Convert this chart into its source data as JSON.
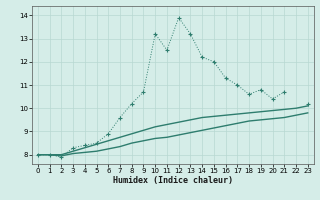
{
  "xlabel": "Humidex (Indice chaleur)",
  "x_values": [
    0,
    1,
    2,
    3,
    4,
    5,
    6,
    7,
    8,
    9,
    10,
    11,
    12,
    13,
    14,
    15,
    16,
    17,
    18,
    19,
    20,
    21,
    22,
    23
  ],
  "line1_y": [
    8.0,
    8.0,
    7.9,
    8.3,
    8.4,
    8.5,
    8.9,
    9.6,
    10.2,
    10.7,
    13.2,
    12.5,
    13.9,
    13.2,
    12.2,
    12.0,
    11.3,
    11.0,
    10.6,
    10.8,
    10.4,
    10.7,
    null,
    10.2
  ],
  "line2_y": [
    8.0,
    8.0,
    8.0,
    8.15,
    8.3,
    8.45,
    8.6,
    8.75,
    8.9,
    9.05,
    9.2,
    9.3,
    9.4,
    9.5,
    9.6,
    9.65,
    9.7,
    9.75,
    9.8,
    9.85,
    9.9,
    9.95,
    10.0,
    10.1
  ],
  "line3_y": [
    8.0,
    8.0,
    7.95,
    8.05,
    8.1,
    8.15,
    8.25,
    8.35,
    8.5,
    8.6,
    8.7,
    8.75,
    8.85,
    8.95,
    9.05,
    9.15,
    9.25,
    9.35,
    9.45,
    9.5,
    9.55,
    9.6,
    9.7,
    9.8
  ],
  "line_color": "#2e7d6e",
  "bg_color": "#d5ede8",
  "grid_color": "#b8d8d2",
  "ylim": [
    7.6,
    14.4
  ],
  "xlim": [
    -0.5,
    23.5
  ],
  "yticks": [
    8,
    9,
    10,
    11,
    12,
    13,
    14
  ],
  "xticks": [
    0,
    1,
    2,
    3,
    4,
    5,
    6,
    7,
    8,
    9,
    10,
    11,
    12,
    13,
    14,
    15,
    16,
    17,
    18,
    19,
    20,
    21,
    22,
    23
  ]
}
